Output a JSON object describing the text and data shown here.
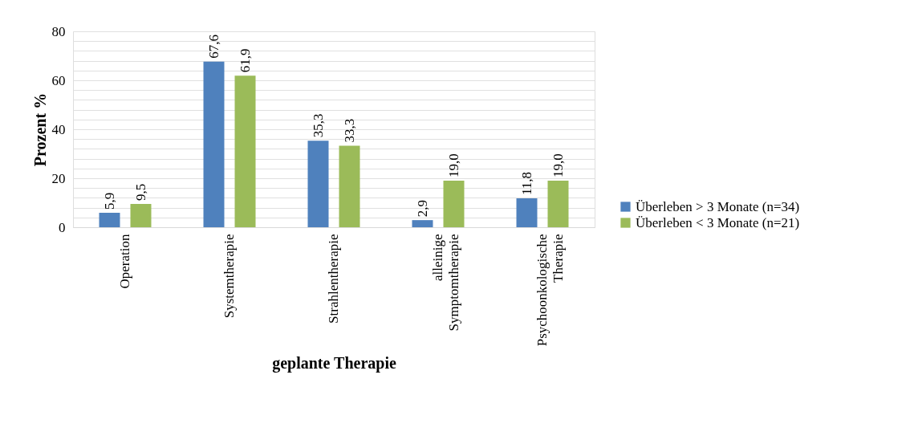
{
  "chart_data": {
    "type": "bar",
    "xlabel": "geplante Therapie",
    "ylabel": "Prozent %",
    "categories": [
      "Operation",
      "Systemtherapie",
      "Strahlentherapie",
      "alleinige Symptomtherapie",
      "Psychoonkologische Therapie"
    ],
    "series": [
      {
        "name": "Überleben > 3 Monate (n=34)",
        "color": "#4f81bd",
        "values": [
          5.9,
          67.6,
          35.3,
          2.9,
          11.8
        ],
        "value_labels": [
          "5,9",
          "67,6",
          "35,3",
          "2,9",
          "11,8"
        ]
      },
      {
        "name": "Überleben < 3 Monate (n=21)",
        "color": "#9bbb59",
        "values": [
          9.5,
          61.9,
          33.3,
          19.0,
          19.0
        ],
        "value_labels": [
          "9,5",
          "61,9",
          "33,3",
          "19,0",
          "19,0"
        ]
      }
    ],
    "ylim": [
      0,
      80
    ],
    "yticks": [
      0,
      {
        "value": 4,
        "label": null
      },
      {
        "value": 8,
        "label": null
      },
      {
        "value": 12,
        "label": null
      },
      {
        "value": 16,
        "label": null
      },
      20,
      {
        "value": 24,
        "label": null
      },
      {
        "value": 28,
        "label": null
      },
      {
        "value": 32,
        "label": null
      },
      {
        "value": 36,
        "label": null
      },
      40,
      {
        "value": 44,
        "label": null
      },
      {
        "value": 48,
        "label": null
      },
      {
        "value": 52,
        "label": null
      },
      {
        "value": 56,
        "label": null
      },
      60,
      {
        "value": 64,
        "label": null
      },
      {
        "value": 68,
        "label": null
      },
      {
        "value": 72,
        "label": null
      },
      {
        "value": 76,
        "label": null
      },
      80
    ],
    "grid": true,
    "legend": "right"
  }
}
